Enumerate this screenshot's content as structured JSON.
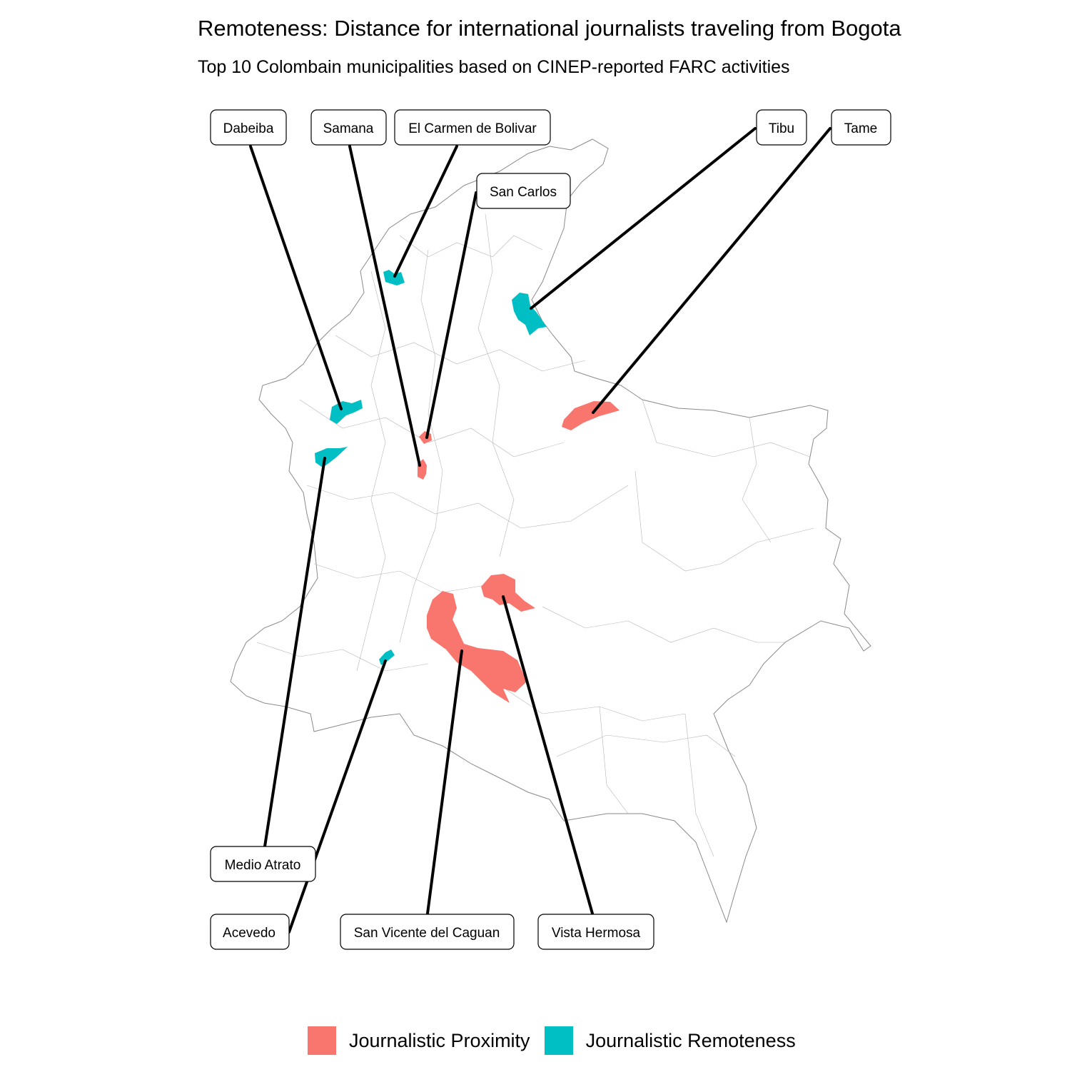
{
  "title": "Remoteness: Distance for international journalists traveling from Bogota",
  "subtitle": "Top 10 Colombain municipalities based on CINEP-reported FARC activities",
  "colors": {
    "proximity": "#F8766D",
    "remoteness": "#00BFC4"
  },
  "legend": [
    {
      "label": "Journalistic Proximity",
      "group": "proximity"
    },
    {
      "label": "Journalistic Remoteness",
      "group": "remoteness"
    }
  ],
  "municipalities": [
    {
      "name": "Dabeiba",
      "group": "remoteness"
    },
    {
      "name": "Samana",
      "group": "proximity"
    },
    {
      "name": "El Carmen de Bolivar",
      "group": "remoteness"
    },
    {
      "name": "San Carlos",
      "group": "proximity"
    },
    {
      "name": "Tibu",
      "group": "remoteness"
    },
    {
      "name": "Tame",
      "group": "proximity"
    },
    {
      "name": "Medio Atrato",
      "group": "remoteness"
    },
    {
      "name": "Acevedo",
      "group": "remoteness"
    },
    {
      "name": "San Vicente del Caguan",
      "group": "proximity"
    },
    {
      "name": "Vista Hermosa",
      "group": "proximity"
    }
  ]
}
